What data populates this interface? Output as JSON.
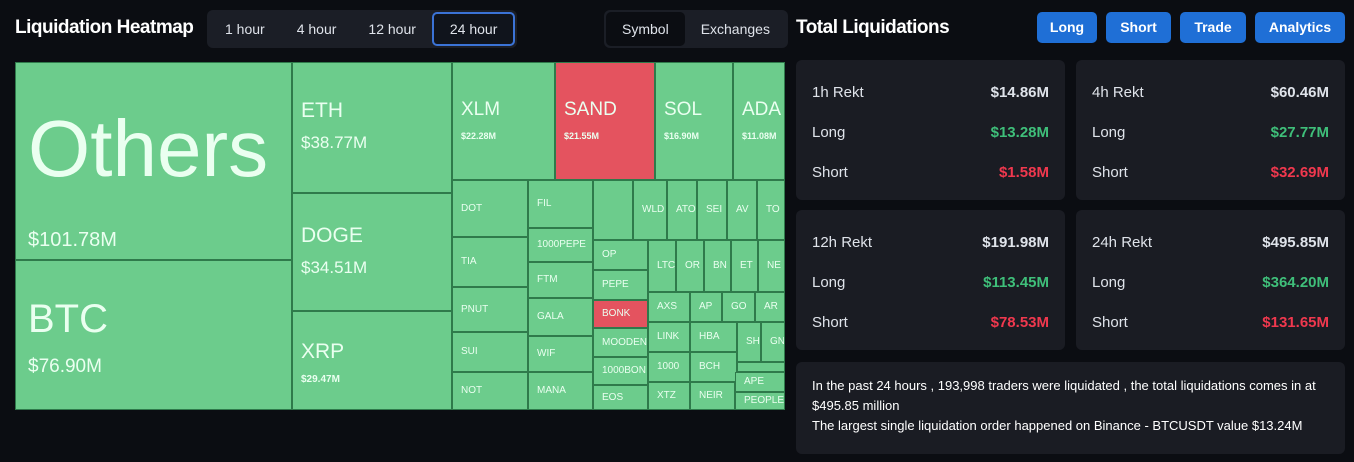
{
  "header": {
    "title": "Liquidation Heatmap",
    "timeframes": [
      "1 hour",
      "4 hour",
      "12 hour",
      "24 hour"
    ],
    "views": [
      "Symbol",
      "Exchanges"
    ]
  },
  "treemap": {
    "tiles": [
      {
        "name": "Others",
        "value": "$101.78M"
      },
      {
        "name": "BTC",
        "value": "$76.90M"
      },
      {
        "name": "ETH",
        "value": "$38.77M"
      },
      {
        "name": "DOGE",
        "value": "$34.51M"
      },
      {
        "name": "XRP",
        "value": "$29.47M"
      },
      {
        "name": "XLM",
        "value": "$22.28M"
      },
      {
        "name": "SAND",
        "value": "$21.55M"
      },
      {
        "name": "SOL",
        "value": "$16.90M"
      },
      {
        "name": "ADA",
        "value": "$11.08M"
      },
      {
        "name": "DOT"
      },
      {
        "name": "TIA"
      },
      {
        "name": "PNUT"
      },
      {
        "name": "SUI"
      },
      {
        "name": "NOT"
      },
      {
        "name": "FIL"
      },
      {
        "name": "1000PEPE"
      },
      {
        "name": "FTM"
      },
      {
        "name": "GALA"
      },
      {
        "name": "WIF"
      },
      {
        "name": "MANA"
      },
      {
        "name": "OP"
      },
      {
        "name": "PEPE"
      },
      {
        "name": "BONK"
      },
      {
        "name": "MOODEN"
      },
      {
        "name": "1000BON"
      },
      {
        "name": "EOS"
      },
      {
        "name": "WLD"
      },
      {
        "name": "ATO"
      },
      {
        "name": "SEI"
      },
      {
        "name": "AV"
      },
      {
        "name": "TO"
      },
      {
        "name": "LTC"
      },
      {
        "name": "OR"
      },
      {
        "name": "BN"
      },
      {
        "name": "ET"
      },
      {
        "name": "NE"
      },
      {
        "name": "AXS"
      },
      {
        "name": "AP"
      },
      {
        "name": "GO"
      },
      {
        "name": "AR"
      },
      {
        "name": "LINK"
      },
      {
        "name": "HBA"
      },
      {
        "name": "SH"
      },
      {
        "name": "GN"
      },
      {
        "name": "1000"
      },
      {
        "name": "BCH"
      },
      {
        "name": "XTZ"
      },
      {
        "name": "NEIR"
      },
      {
        "name": "APE"
      },
      {
        "name": "PEOPLE"
      }
    ]
  },
  "panel": {
    "title": "Total Liquidations",
    "buttons": [
      "Long",
      "Short",
      "Trade",
      "Analytics"
    ],
    "cards": [
      {
        "label": "1h Rekt",
        "total": "$14.86M",
        "long_label": "Long",
        "long": "$13.28M",
        "short_label": "Short",
        "short": "$1.58M"
      },
      {
        "label": "4h Rekt",
        "total": "$60.46M",
        "long_label": "Long",
        "long": "$27.77M",
        "short_label": "Short",
        "short": "$32.69M"
      },
      {
        "label": "12h Rekt",
        "total": "$191.98M",
        "long_label": "Long",
        "long": "$113.45M",
        "short_label": "Short",
        "short": "$78.53M"
      },
      {
        "label": "24h Rekt",
        "total": "$495.85M",
        "long_label": "Long",
        "long": "$364.20M",
        "short_label": "Short",
        "short": "$131.65M"
      }
    ],
    "summary": [
      "In the past 24 hours , 193,998 traders were liquidated , the total liquidations comes in at $495.85 million",
      "The largest single liquidation order happened on Binance - BTCUSDT value $13.24M"
    ]
  }
}
